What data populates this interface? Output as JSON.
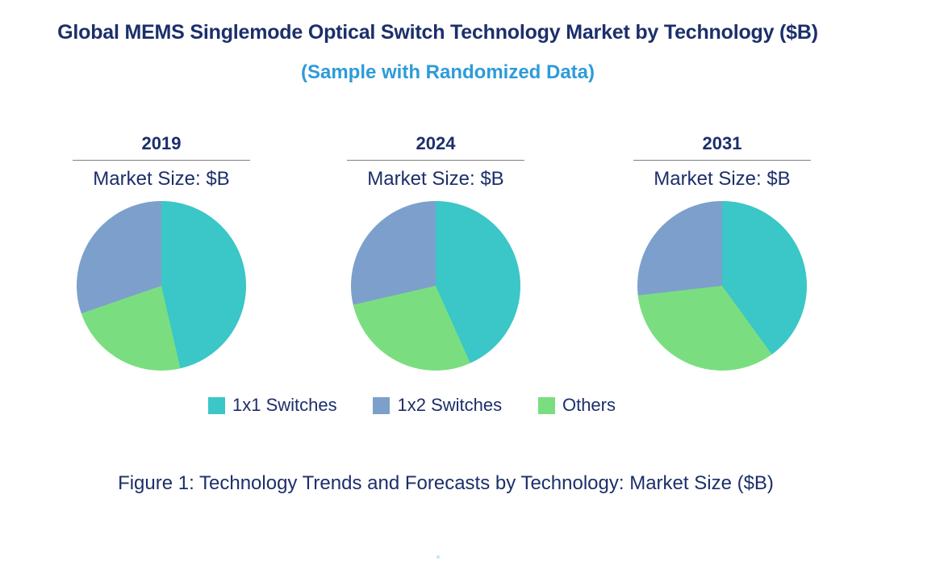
{
  "page": {
    "title": "Global MEMS Singlemode Optical Switch Technology Market by Technology ($B)",
    "subtitle": "(Sample with Randomized Data)",
    "caption": "Figure 1: Technology Trends and Forecasts by Technology: Market Size ($B)"
  },
  "colors": {
    "navy_text": "#1C2F6B",
    "subtitle_blue": "#2E9BD9",
    "teal": "#3BC6C7",
    "blue_gray": "#7CA0CB",
    "green": "#7ADE80",
    "underline_gray": "#7f7f7f"
  },
  "chart_data": {
    "type": "pie",
    "title": "Global MEMS Singlemode Optical Switch Technology Market by Technology ($B)",
    "subtitle": "(Sample with Randomized Data)",
    "unit": "percent share of market size ($B), randomized sample data",
    "categories": [
      "1x1 Switches",
      "1x2 Switches",
      "Others"
    ],
    "colors": [
      "#3BC6C7",
      "#7CA0CB",
      "#7ADE80"
    ],
    "draw_order_indices": [
      0,
      2,
      1
    ],
    "start_angle_deg_clockwise_from_top": 0,
    "legend_position": "bottom-center",
    "pies": [
      {
        "year": "2019",
        "subtitle": "Market Size: $B",
        "values": [
          46.4,
          30.3,
          23.3
        ]
      },
      {
        "year": "2024",
        "subtitle": "Market Size: $B",
        "values": [
          43.3,
          28.6,
          28.1
        ]
      },
      {
        "year": "2031",
        "subtitle": "Market Size: $B",
        "values": [
          40.0,
          26.8,
          33.2
        ]
      }
    ]
  },
  "legend": {
    "items": [
      {
        "label": "1x1 Switches",
        "color": "#3BC6C7"
      },
      {
        "label": "1x2 Switches",
        "color": "#7CA0CB"
      },
      {
        "label": "Others",
        "color": "#7ADE80"
      }
    ]
  }
}
